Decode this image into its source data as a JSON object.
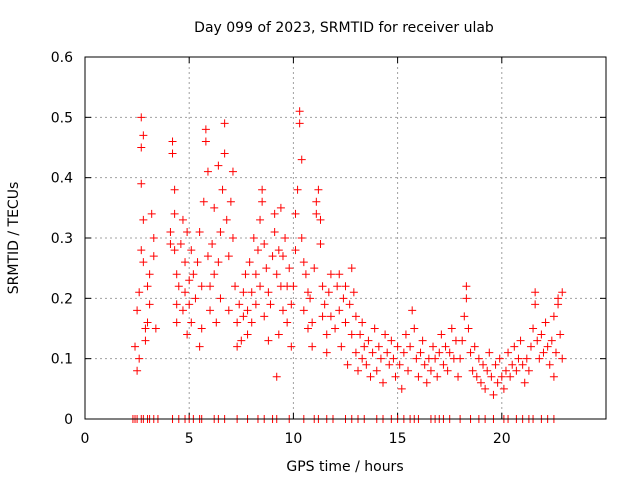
{
  "chart_data": {
    "type": "scatter",
    "title": "Day 099 of 2023, SRMTID for receiver ulab",
    "xlabel": "GPS time / hours",
    "ylabel": "SRMTID / TECUs",
    "xlim": [
      0,
      25
    ],
    "ylim": [
      0,
      0.6
    ],
    "x_ticks": [
      0,
      5,
      10,
      15,
      20
    ],
    "x_tick_labels": [
      "0",
      "5",
      "10",
      "15",
      "20"
    ],
    "y_ticks": [
      0,
      0.1,
      0.2,
      0.3,
      0.4,
      0.5,
      0.6
    ],
    "y_tick_labels": [
      "0",
      "0.1",
      "0.2",
      "0.3",
      "0.4",
      "0.5",
      "0.6"
    ],
    "grid": true,
    "marker": "plus",
    "color": "#ff0000",
    "zero_points_x": [
      2.3,
      2.4,
      2.5,
      2.7,
      2.8,
      3.0,
      3.1,
      3.3,
      3.5,
      4.2,
      4.5,
      4.8,
      5.0,
      5.2,
      5.5,
      5.6,
      6.2,
      6.4,
      6.7,
      7.3,
      7.8,
      8.3,
      8.6,
      9.0,
      9.2,
      9.8,
      10.5,
      11.0,
      11.2,
      11.6,
      11.9,
      12.5,
      12.8,
      13.1,
      13.4,
      14.0,
      14.3,
      14.7,
      15.0,
      15.3,
      15.6,
      15.8,
      16.0,
      16.6,
      16.8,
      17.0,
      17.2,
      17.5,
      18.0,
      18.5,
      18.9,
      19.2,
      19.6,
      20.1,
      20.3,
      20.7,
      21.0,
      21.3,
      21.5,
      21.9,
      22.2,
      22.5
    ],
    "series": [
      {
        "name": "SRMTID",
        "points": [
          [
            2.4,
            0.12
          ],
          [
            2.5,
            0.08
          ],
          [
            2.5,
            0.18
          ],
          [
            2.6,
            0.21
          ],
          [
            2.6,
            0.1
          ],
          [
            2.7,
            0.28
          ],
          [
            2.7,
            0.39
          ],
          [
            2.7,
            0.45
          ],
          [
            2.7,
            0.5
          ],
          [
            2.8,
            0.47
          ],
          [
            2.8,
            0.33
          ],
          [
            2.8,
            0.26
          ],
          [
            2.9,
            0.15
          ],
          [
            2.9,
            0.13
          ],
          [
            3.0,
            0.22
          ],
          [
            3.0,
            0.16
          ],
          [
            3.1,
            0.24
          ],
          [
            3.1,
            0.19
          ],
          [
            3.2,
            0.34
          ],
          [
            3.3,
            0.3
          ],
          [
            3.3,
            0.27
          ],
          [
            3.4,
            0.15
          ],
          [
            4.1,
            0.31
          ],
          [
            4.1,
            0.29
          ],
          [
            4.2,
            0.44
          ],
          [
            4.2,
            0.46
          ],
          [
            4.3,
            0.38
          ],
          [
            4.3,
            0.34
          ],
          [
            4.3,
            0.28
          ],
          [
            4.4,
            0.24
          ],
          [
            4.4,
            0.19
          ],
          [
            4.4,
            0.16
          ],
          [
            4.5,
            0.22
          ],
          [
            4.6,
            0.29
          ],
          [
            4.7,
            0.33
          ],
          [
            4.7,
            0.18
          ],
          [
            4.8,
            0.26
          ],
          [
            4.8,
            0.21
          ],
          [
            4.9,
            0.31
          ],
          [
            4.9,
            0.14
          ],
          [
            5.0,
            0.23
          ],
          [
            5.0,
            0.19
          ],
          [
            5.1,
            0.28
          ],
          [
            5.1,
            0.16
          ],
          [
            5.2,
            0.24
          ],
          [
            5.3,
            0.2
          ],
          [
            5.4,
            0.26
          ],
          [
            5.5,
            0.31
          ],
          [
            5.5,
            0.12
          ],
          [
            5.6,
            0.22
          ],
          [
            5.6,
            0.15
          ],
          [
            5.7,
            0.36
          ],
          [
            5.8,
            0.46
          ],
          [
            5.8,
            0.48
          ],
          [
            5.9,
            0.41
          ],
          [
            5.9,
            0.27
          ],
          [
            6.0,
            0.22
          ],
          [
            6.0,
            0.18
          ],
          [
            6.1,
            0.29
          ],
          [
            6.2,
            0.35
          ],
          [
            6.2,
            0.24
          ],
          [
            6.3,
            0.16
          ],
          [
            6.4,
            0.42
          ],
          [
            6.4,
            0.26
          ],
          [
            6.5,
            0.31
          ],
          [
            6.5,
            0.2
          ],
          [
            6.6,
            0.38
          ],
          [
            6.7,
            0.44
          ],
          [
            6.7,
            0.49
          ],
          [
            6.8,
            0.33
          ],
          [
            6.9,
            0.27
          ],
          [
            6.9,
            0.18
          ],
          [
            7.0,
            0.36
          ],
          [
            7.1,
            0.41
          ],
          [
            7.1,
            0.3
          ],
          [
            7.2,
            0.22
          ],
          [
            7.3,
            0.16
          ],
          [
            7.3,
            0.12
          ],
          [
            7.4,
            0.19
          ],
          [
            7.5,
            0.13
          ],
          [
            7.6,
            0.21
          ],
          [
            7.6,
            0.17
          ],
          [
            7.7,
            0.24
          ],
          [
            7.8,
            0.18
          ],
          [
            7.8,
            0.14
          ],
          [
            7.9,
            0.26
          ],
          [
            8.0,
            0.21
          ],
          [
            8.0,
            0.16
          ],
          [
            8.1,
            0.3
          ],
          [
            8.2,
            0.24
          ],
          [
            8.2,
            0.19
          ],
          [
            8.3,
            0.28
          ],
          [
            8.4,
            0.33
          ],
          [
            8.4,
            0.22
          ],
          [
            8.5,
            0.36
          ],
          [
            8.5,
            0.38
          ],
          [
            8.6,
            0.29
          ],
          [
            8.6,
            0.17
          ],
          [
            8.7,
            0.25
          ],
          [
            8.8,
            0.21
          ],
          [
            8.8,
            0.13
          ],
          [
            8.9,
            0.19
          ],
          [
            9.0,
            0.27
          ],
          [
            9.1,
            0.34
          ],
          [
            9.1,
            0.31
          ],
          [
            9.2,
            0.24
          ],
          [
            9.2,
            0.07
          ],
          [
            9.3,
            0.14
          ],
          [
            9.3,
            0.28
          ],
          [
            9.4,
            0.35
          ],
          [
            9.4,
            0.22
          ],
          [
            9.5,
            0.27
          ],
          [
            9.5,
            0.18
          ],
          [
            9.6,
            0.3
          ],
          [
            9.7,
            0.22
          ],
          [
            9.7,
            0.16
          ],
          [
            9.8,
            0.25
          ],
          [
            9.9,
            0.19
          ],
          [
            9.9,
            0.12
          ],
          [
            10.0,
            0.22
          ],
          [
            10.1,
            0.28
          ],
          [
            10.1,
            0.34
          ],
          [
            10.2,
            0.38
          ],
          [
            10.3,
            0.49
          ],
          [
            10.3,
            0.51
          ],
          [
            10.4,
            0.43
          ],
          [
            10.4,
            0.3
          ],
          [
            10.5,
            0.26
          ],
          [
            10.5,
            0.18
          ],
          [
            10.6,
            0.24
          ],
          [
            10.7,
            0.21
          ],
          [
            10.7,
            0.15
          ],
          [
            10.8,
            0.2
          ],
          [
            10.9,
            0.16
          ],
          [
            10.9,
            0.12
          ],
          [
            11.0,
            0.25
          ],
          [
            11.1,
            0.34
          ],
          [
            11.1,
            0.36
          ],
          [
            11.2,
            0.38
          ],
          [
            11.3,
            0.33
          ],
          [
            11.3,
            0.29
          ],
          [
            11.4,
            0.22
          ],
          [
            11.4,
            0.17
          ],
          [
            11.5,
            0.19
          ],
          [
            11.6,
            0.14
          ],
          [
            11.6,
            0.11
          ],
          [
            11.7,
            0.21
          ],
          [
            11.8,
            0.24
          ],
          [
            11.8,
            0.17
          ],
          [
            12.0,
            0.15
          ],
          [
            12.1,
            0.22
          ],
          [
            12.2,
            0.24
          ],
          [
            12.2,
            0.18
          ],
          [
            12.3,
            0.12
          ],
          [
            12.4,
            0.2
          ],
          [
            12.5,
            0.16
          ],
          [
            12.5,
            0.22
          ],
          [
            12.6,
            0.09
          ],
          [
            12.7,
            0.19
          ],
          [
            12.8,
            0.25
          ],
          [
            12.8,
            0.14
          ],
          [
            12.9,
            0.21
          ],
          [
            13.0,
            0.17
          ],
          [
            13.0,
            0.11
          ],
          [
            13.1,
            0.08
          ],
          [
            13.2,
            0.14
          ],
          [
            13.3,
            0.1
          ],
          [
            13.3,
            0.16
          ],
          [
            13.4,
            0.12
          ],
          [
            13.5,
            0.09
          ],
          [
            13.6,
            0.13
          ],
          [
            13.7,
            0.07
          ],
          [
            13.8,
            0.11
          ],
          [
            13.9,
            0.15
          ],
          [
            14.0,
            0.08
          ],
          [
            14.1,
            0.12
          ],
          [
            14.2,
            0.1
          ],
          [
            14.3,
            0.06
          ],
          [
            14.4,
            0.14
          ],
          [
            14.5,
            0.11
          ],
          [
            14.6,
            0.09
          ],
          [
            14.7,
            0.13
          ],
          [
            14.8,
            0.1
          ],
          [
            14.9,
            0.07
          ],
          [
            15.0,
            0.12
          ],
          [
            15.1,
            0.09
          ],
          [
            15.2,
            0.05
          ],
          [
            15.3,
            0.11
          ],
          [
            15.4,
            0.14
          ],
          [
            15.5,
            0.08
          ],
          [
            15.6,
            0.12
          ],
          [
            15.7,
            0.18
          ],
          [
            15.8,
            0.15
          ],
          [
            15.9,
            0.1
          ],
          [
            16.0,
            0.07
          ],
          [
            16.1,
            0.11
          ],
          [
            16.2,
            0.13
          ],
          [
            16.3,
            0.09
          ],
          [
            16.4,
            0.06
          ],
          [
            16.5,
            0.1
          ],
          [
            16.6,
            0.08
          ],
          [
            16.7,
            0.12
          ],
          [
            16.8,
            0.1
          ],
          [
            16.9,
            0.07
          ],
          [
            17.0,
            0.11
          ],
          [
            17.1,
            0.14
          ],
          [
            17.2,
            0.09
          ],
          [
            17.3,
            0.12
          ],
          [
            17.4,
            0.08
          ],
          [
            17.5,
            0.11
          ],
          [
            17.6,
            0.15
          ],
          [
            17.7,
            0.1
          ],
          [
            17.8,
            0.13
          ],
          [
            17.9,
            0.07
          ],
          [
            18.0,
            0.1
          ],
          [
            18.1,
            0.13
          ],
          [
            18.2,
            0.17
          ],
          [
            18.3,
            0.2
          ],
          [
            18.3,
            0.22
          ],
          [
            18.4,
            0.15
          ],
          [
            18.5,
            0.11
          ],
          [
            18.6,
            0.08
          ],
          [
            18.7,
            0.12
          ],
          [
            18.8,
            0.07
          ],
          [
            18.9,
            0.1
          ],
          [
            19.0,
            0.06
          ],
          [
            19.1,
            0.09
          ],
          [
            19.2,
            0.05
          ],
          [
            19.3,
            0.08
          ],
          [
            19.4,
            0.11
          ],
          [
            19.5,
            0.07
          ],
          [
            19.6,
            0.04
          ],
          [
            19.7,
            0.09
          ],
          [
            19.8,
            0.06
          ],
          [
            19.9,
            0.1
          ],
          [
            20.0,
            0.07
          ],
          [
            20.1,
            0.05
          ],
          [
            20.2,
            0.08
          ],
          [
            20.3,
            0.11
          ],
          [
            20.4,
            0.07
          ],
          [
            20.5,
            0.09
          ],
          [
            20.6,
            0.12
          ],
          [
            20.7,
            0.08
          ],
          [
            20.8,
            0.1
          ],
          [
            20.9,
            0.13
          ],
          [
            21.0,
            0.09
          ],
          [
            21.1,
            0.06
          ],
          [
            21.2,
            0.1
          ],
          [
            21.3,
            0.08
          ],
          [
            21.4,
            0.12
          ],
          [
            21.5,
            0.15
          ],
          [
            21.6,
            0.19
          ],
          [
            21.6,
            0.21
          ],
          [
            21.7,
            0.13
          ],
          [
            21.8,
            0.1
          ],
          [
            21.9,
            0.14
          ],
          [
            22.0,
            0.11
          ],
          [
            22.1,
            0.16
          ],
          [
            22.2,
            0.12
          ],
          [
            22.3,
            0.09
          ],
          [
            22.4,
            0.13
          ],
          [
            22.5,
            0.17
          ],
          [
            22.5,
            0.07
          ],
          [
            22.6,
            0.11
          ],
          [
            22.7,
            0.19
          ],
          [
            22.7,
            0.2
          ],
          [
            22.8,
            0.14
          ],
          [
            22.9,
            0.21
          ],
          [
            22.9,
            0.1
          ]
        ]
      }
    ]
  }
}
